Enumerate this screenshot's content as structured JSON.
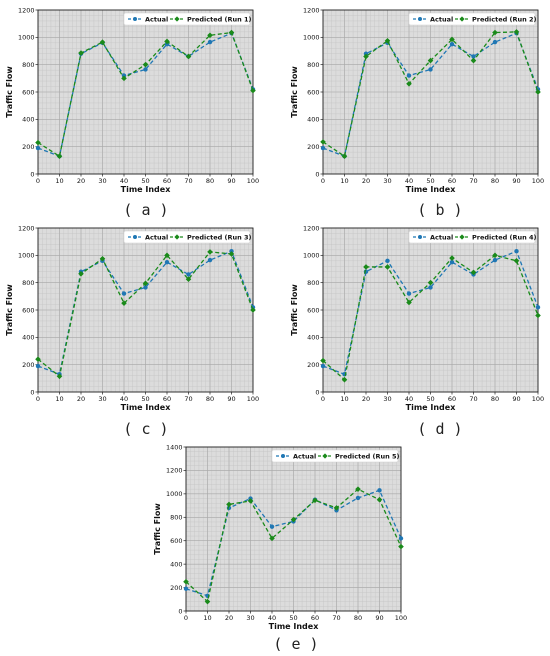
{
  "chart_data": [
    {
      "panel": "a",
      "caption": "( a )",
      "type": "line",
      "xlabel": "Time Index",
      "ylabel": "Traffic Flow",
      "xlim": [
        0,
        100
      ],
      "ylim": [
        0,
        1200
      ],
      "xticks": [
        0,
        10,
        20,
        30,
        40,
        50,
        60,
        70,
        80,
        90,
        100
      ],
      "yticks": [
        0,
        200,
        400,
        600,
        800,
        1000,
        1200
      ],
      "grid": true,
      "legend": "top-right",
      "series": [
        {
          "name": "Actual",
          "color": "#1f77b4",
          "x": [
            0,
            10,
            20,
            30,
            40,
            50,
            60,
            70,
            80,
            90,
            100
          ],
          "y": [
            190,
            130,
            880,
            960,
            720,
            765,
            950,
            860,
            965,
            1030,
            620
          ]
        },
        {
          "name": "Predicted (Run 1)",
          "color": "#1a8a1a",
          "x": [
            0,
            10,
            20,
            30,
            40,
            50,
            60,
            70,
            80,
            90,
            100
          ],
          "y": [
            230,
            130,
            885,
            965,
            700,
            800,
            970,
            860,
            1015,
            1035,
            610
          ]
        }
      ]
    },
    {
      "panel": "b",
      "caption": "( b )",
      "type": "line",
      "xlabel": "Time Index",
      "ylabel": "Traffic Flow",
      "xlim": [
        0,
        100
      ],
      "ylim": [
        0,
        1200
      ],
      "xticks": [
        0,
        10,
        20,
        30,
        40,
        50,
        60,
        70,
        80,
        90,
        100
      ],
      "yticks": [
        0,
        200,
        400,
        600,
        800,
        1000,
        1200
      ],
      "grid": true,
      "legend": "top-right",
      "series": [
        {
          "name": "Actual",
          "color": "#1f77b4",
          "x": [
            0,
            10,
            20,
            30,
            40,
            50,
            60,
            70,
            80,
            90,
            100
          ],
          "y": [
            190,
            130,
            880,
            960,
            720,
            765,
            950,
            860,
            965,
            1030,
            620
          ]
        },
        {
          "name": "Predicted (Run 2)",
          "color": "#1a8a1a",
          "x": [
            0,
            10,
            20,
            30,
            40,
            50,
            60,
            70,
            80,
            90,
            100
          ],
          "y": [
            235,
            130,
            860,
            975,
            660,
            830,
            985,
            830,
            1035,
            1040,
            600
          ]
        }
      ]
    },
    {
      "panel": "c",
      "caption": "( c )",
      "type": "line",
      "xlabel": "Time Index",
      "ylabel": "Traffic Flow",
      "xlim": [
        0,
        100
      ],
      "ylim": [
        0,
        1200
      ],
      "xticks": [
        0,
        10,
        20,
        30,
        40,
        50,
        60,
        70,
        80,
        90,
        100
      ],
      "yticks": [
        0,
        200,
        400,
        600,
        800,
        1000,
        1200
      ],
      "grid": true,
      "legend": "top-right",
      "series": [
        {
          "name": "Actual",
          "color": "#1f77b4",
          "x": [
            0,
            10,
            20,
            30,
            40,
            50,
            60,
            70,
            80,
            90,
            100
          ],
          "y": [
            190,
            130,
            880,
            960,
            720,
            765,
            950,
            860,
            965,
            1030,
            620
          ]
        },
        {
          "name": "Predicted (Run 3)",
          "color": "#1a8a1a",
          "x": [
            0,
            10,
            20,
            30,
            40,
            50,
            60,
            70,
            80,
            90,
            100
          ],
          "y": [
            240,
            115,
            865,
            975,
            650,
            795,
            1000,
            825,
            1025,
            1010,
            600
          ]
        }
      ]
    },
    {
      "panel": "d",
      "caption": "( d )",
      "type": "line",
      "xlabel": "Time Index",
      "ylabel": "Traffic Flow",
      "xlim": [
        0,
        100
      ],
      "ylim": [
        0,
        1200
      ],
      "xticks": [
        0,
        10,
        20,
        30,
        40,
        50,
        60,
        70,
        80,
        90,
        100
      ],
      "yticks": [
        0,
        200,
        400,
        600,
        800,
        1000,
        1200
      ],
      "grid": true,
      "legend": "top-right",
      "series": [
        {
          "name": "Actual",
          "color": "#1f77b4",
          "x": [
            0,
            10,
            20,
            30,
            40,
            50,
            60,
            70,
            80,
            90,
            100
          ],
          "y": [
            190,
            130,
            880,
            960,
            720,
            765,
            950,
            860,
            965,
            1030,
            620
          ]
        },
        {
          "name": "Predicted (Run 4)",
          "color": "#1a8a1a",
          "x": [
            0,
            10,
            20,
            30,
            40,
            50,
            60,
            70,
            80,
            90,
            100
          ],
          "y": [
            230,
            90,
            915,
            915,
            655,
            800,
            980,
            875,
            1000,
            960,
            560
          ]
        }
      ]
    },
    {
      "panel": "e",
      "caption": "( e )",
      "type": "line",
      "xlabel": "Time Index",
      "ylabel": "Traffic Flow",
      "xlim": [
        0,
        100
      ],
      "ylim": [
        0,
        1400
      ],
      "xticks": [
        0,
        10,
        20,
        30,
        40,
        50,
        60,
        70,
        80,
        90,
        100
      ],
      "yticks": [
        0,
        200,
        400,
        600,
        800,
        1000,
        1200,
        1400
      ],
      "grid": true,
      "legend": "top-right",
      "series": [
        {
          "name": "Actual",
          "color": "#1f77b4",
          "x": [
            0,
            10,
            20,
            30,
            40,
            50,
            60,
            70,
            80,
            90,
            100
          ],
          "y": [
            190,
            130,
            880,
            960,
            720,
            765,
            950,
            860,
            965,
            1030,
            620
          ]
        },
        {
          "name": "Predicted (Run 5)",
          "color": "#1a8a1a",
          "x": [
            0,
            10,
            20,
            30,
            40,
            50,
            60,
            70,
            80,
            90,
            100
          ],
          "y": [
            250,
            80,
            910,
            940,
            620,
            780,
            945,
            880,
            1040,
            950,
            550
          ]
        }
      ]
    }
  ]
}
